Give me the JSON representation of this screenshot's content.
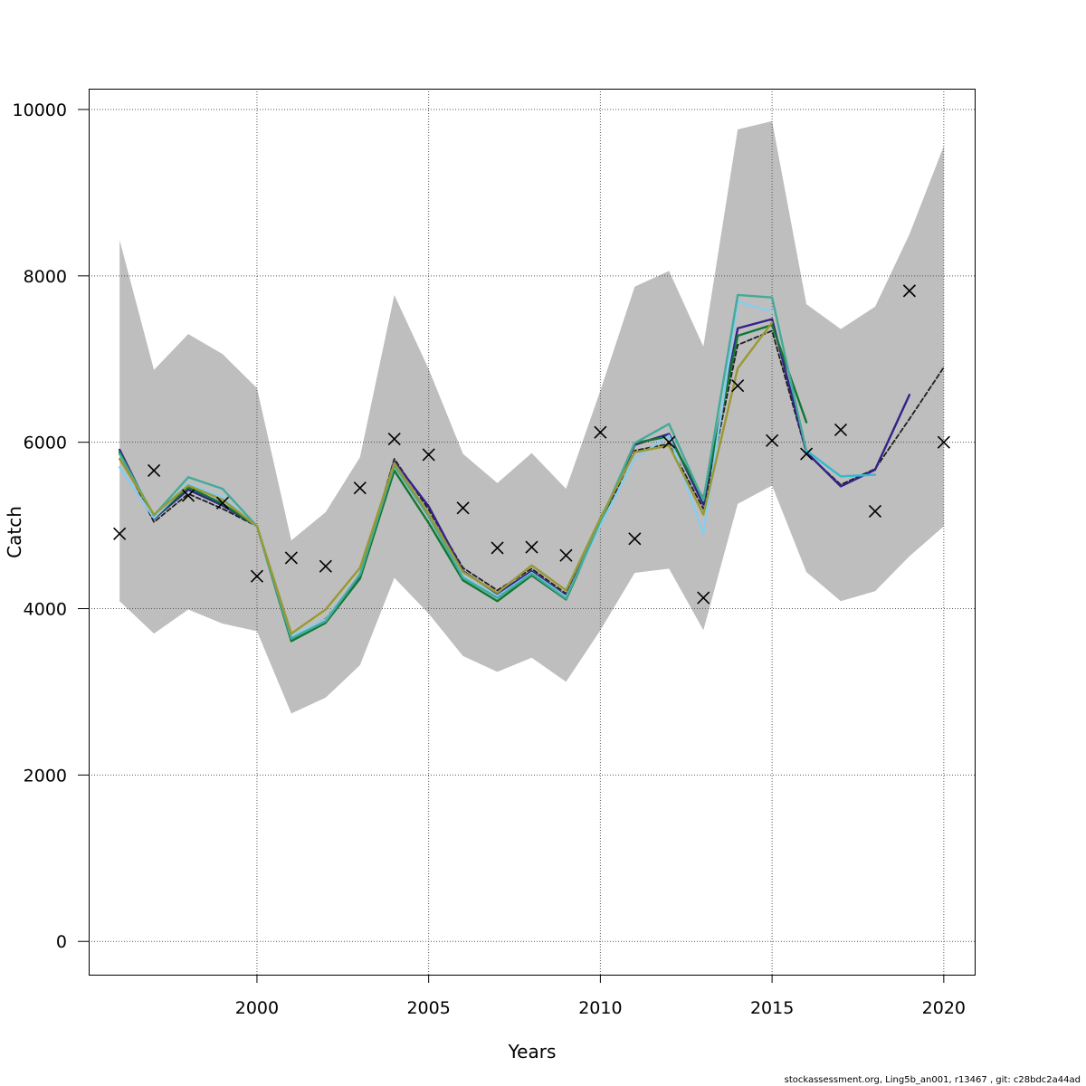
{
  "chart_data": {
    "type": "line",
    "xlabel": "Years",
    "ylabel": "Catch",
    "xlim": [
      1995.1,
      2020.9
    ],
    "ylim": [
      -400,
      10250
    ],
    "x_ticks": [
      2000,
      2005,
      2010,
      2015,
      2020
    ],
    "y_ticks": [
      0,
      2000,
      4000,
      6000,
      8000,
      10000
    ],
    "x_tick_labels": [
      "2000",
      "2005",
      "2010",
      "2015",
      "2020"
    ],
    "y_tick_labels": [
      "0",
      "2000",
      "4000",
      "6000",
      "8000",
      "10000"
    ],
    "grid": true,
    "band": {
      "color": "#bebebe",
      "x": [
        1996,
        1997,
        1998,
        1999,
        2000,
        2001,
        2002,
        2003,
        2004,
        2005,
        2006,
        2007,
        2008,
        2009,
        2010,
        2011,
        2012,
        2013,
        2014,
        2015,
        2016,
        2017,
        2018,
        2019,
        2020
      ],
      "upper": [
        8430,
        6870,
        7300,
        7060,
        6650,
        4820,
        5160,
        5820,
        7770,
        6880,
        5860,
        5510,
        5870,
        5440,
        6620,
        7870,
        8060,
        7150,
        9760,
        9860,
        7660,
        7360,
        7630,
        8500,
        9560
      ],
      "lower": [
        4090,
        3700,
        3990,
        3820,
        3730,
        2740,
        2930,
        3320,
        4370,
        3940,
        3430,
        3240,
        3410,
        3120,
        3740,
        4430,
        4480,
        3740,
        5260,
        5480,
        4440,
        4090,
        4210,
        4630,
        4990
      ]
    },
    "series": [
      {
        "color": "#1f1f1f",
        "dashed": true,
        "x": [
          1996,
          1997,
          1998,
          1999,
          2000,
          2001,
          2002,
          2003,
          2004,
          2005,
          2006,
          2007,
          2008,
          2009,
          2010,
          2011,
          2012,
          2013,
          2014,
          2015,
          2016,
          2017,
          2018,
          2019,
          2020
        ],
        "y": [
          5870,
          5040,
          5380,
          5200,
          4990,
          3630,
          3880,
          4400,
          5800,
          5190,
          4490,
          4220,
          4480,
          4180,
          5000,
          5900,
          5980,
          5200,
          7170,
          7340,
          5870,
          5490,
          5680,
          6280,
          6900
        ]
      },
      {
        "color": "#332288",
        "x": [
          1996,
          1997,
          1998,
          1999,
          2000,
          2001,
          2002,
          2003,
          2004,
          2005,
          2006,
          2007,
          2008,
          2009,
          2010,
          2011,
          2012,
          2013,
          2014,
          2015,
          2016,
          2017,
          2018,
          2019
        ],
        "y": [
          5910,
          5080,
          5430,
          5240,
          4990,
          3640,
          3860,
          4390,
          5770,
          5230,
          4450,
          4180,
          4450,
          4150,
          5030,
          5970,
          6100,
          5250,
          7370,
          7480,
          5880,
          5470,
          5670,
          6570
        ]
      },
      {
        "color": "#117733",
        "x": [
          1996,
          1997,
          1998,
          1999,
          2000,
          2001,
          2002,
          2003,
          2004,
          2005,
          2006,
          2007,
          2008,
          2009,
          2010,
          2011,
          2012,
          2013,
          2014,
          2015,
          2016
        ],
        "y": [
          5880,
          5090,
          5460,
          5260,
          4990,
          3610,
          3830,
          4360,
          5660,
          5030,
          4340,
          4090,
          4400,
          4110,
          5030,
          5990,
          6070,
          5320,
          7280,
          7410,
          6240
        ]
      },
      {
        "color": "#88ccee",
        "x": [
          1996,
          1997,
          1998,
          1999,
          2000,
          2001,
          2002,
          2003,
          2004,
          2005,
          2006,
          2007,
          2008,
          2009,
          2010,
          2011,
          2012,
          2013,
          2014,
          2015
        ],
        "y": [
          5700,
          5090,
          5500,
          5340,
          4980,
          3670,
          3870,
          4410,
          5730,
          5140,
          4390,
          4150,
          4430,
          4140,
          5000,
          5800,
          6080,
          4900,
          7690,
          7570
        ]
      },
      {
        "color": "#44aa99",
        "x": [
          1996,
          1997,
          1998,
          1999,
          2000,
          2001,
          2002,
          2003,
          2004,
          2005,
          2006,
          2007,
          2008,
          2009,
          2010,
          2011,
          2012,
          2013,
          2014,
          2015,
          2016
        ],
        "y": [
          5860,
          5120,
          5580,
          5440,
          4990,
          3640,
          3850,
          4410,
          5720,
          5110,
          4370,
          4130,
          4420,
          4120,
          5050,
          5990,
          6220,
          5300,
          7770,
          7740,
          5890
        ]
      },
      {
        "color": "#999933",
        "x": [
          1996,
          1997,
          1998,
          1999,
          2000,
          2001,
          2002,
          2003,
          2004,
          2005,
          2006,
          2007,
          2008,
          2009,
          2010,
          2011,
          2012,
          2013,
          2014,
          2015
        ],
        "y": [
          5800,
          5130,
          5480,
          5310,
          4990,
          3700,
          3990,
          4490,
          5750,
          5140,
          4440,
          4190,
          4520,
          4220,
          5090,
          5880,
          5960,
          5130,
          6890,
          7440
        ]
      },
      {
        "color": "#33bbcc",
        "x": [
          2016,
          2017,
          2018
        ],
        "y": [
          5900,
          5590,
          5610
        ]
      }
    ],
    "observed": {
      "marker": "x",
      "x": [
        1996,
        1997,
        1998,
        1999,
        2000,
        2001,
        2002,
        2003,
        2004,
        2005,
        2006,
        2007,
        2008,
        2009,
        2010,
        2011,
        2012,
        2013,
        2014,
        2015,
        2016,
        2017,
        2018,
        2019,
        2020
      ],
      "y": [
        4900,
        5660,
        5360,
        5270,
        4390,
        4610,
        4510,
        5450,
        6040,
        5850,
        5210,
        4730,
        4740,
        4640,
        6120,
        4840,
        6000,
        4130,
        6680,
        6020,
        5860,
        6150,
        5170,
        7820,
        6000
      ]
    }
  },
  "footer": "stockassessment.org, Ling5b_an001, r13467 , git: c28bdc2a44ad"
}
